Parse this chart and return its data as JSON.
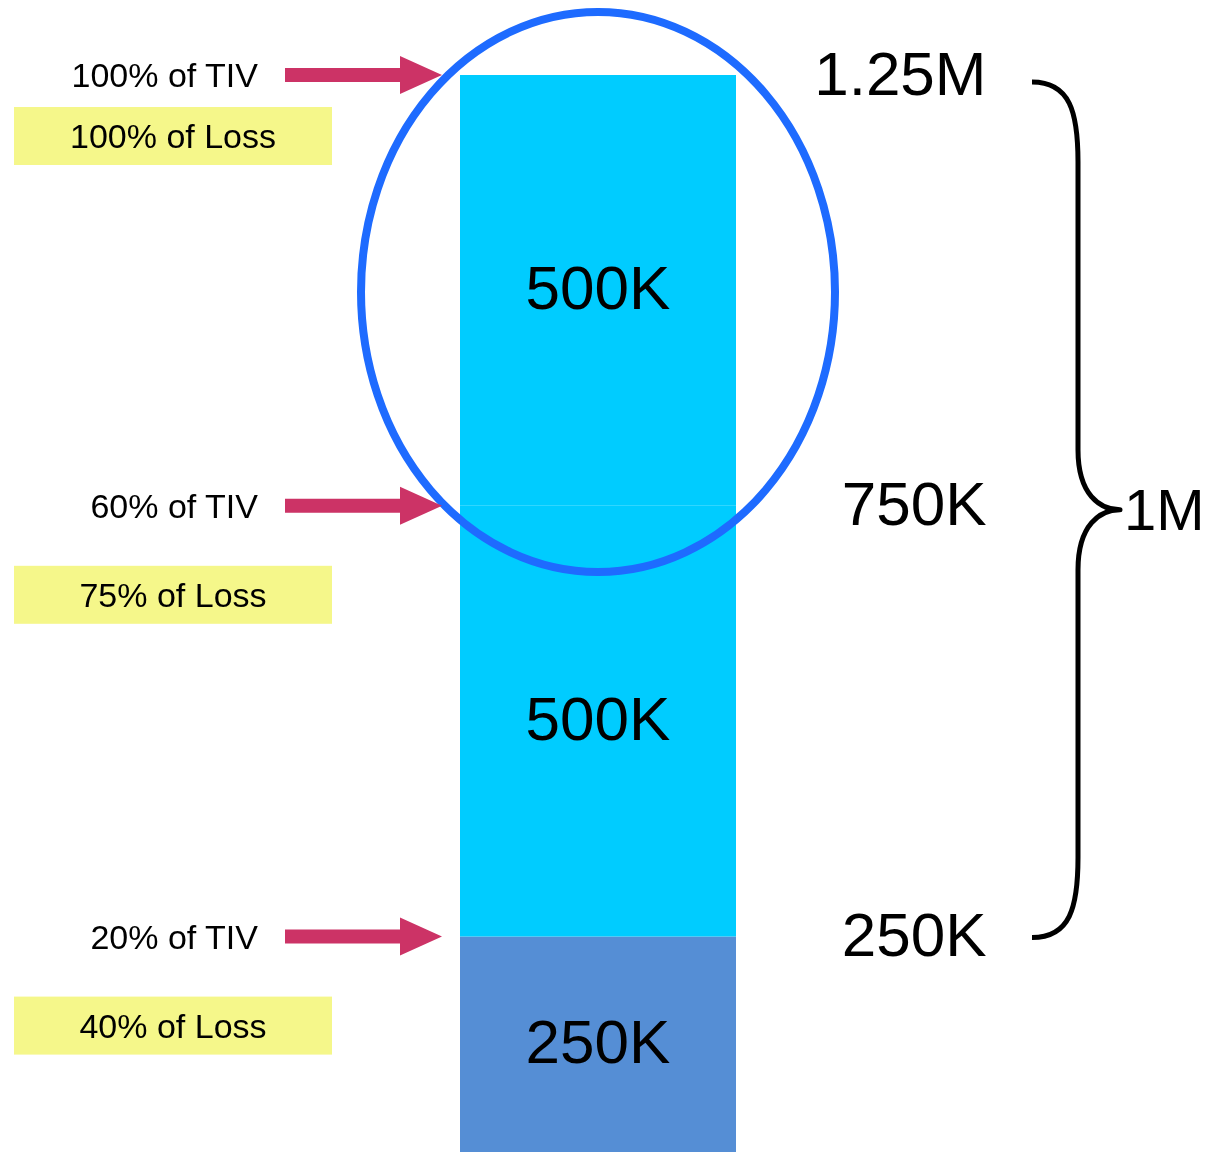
{
  "chart_data": {
    "type": "bar",
    "stacked": true,
    "categories": [
      null
    ],
    "series": [
      {
        "color": "#558ed5",
        "values": [
          250000
        ],
        "value_labels": [
          "250K"
        ]
      },
      {
        "color": "#00ccff",
        "values": [
          500000
        ],
        "value_labels": [
          "500K"
        ]
      },
      {
        "color": "#00ccff",
        "values": [
          500000
        ],
        "value_labels": [
          "500K"
        ]
      }
    ],
    "ylim": [
      0,
      1250000
    ],
    "yticks": [
      {
        "value": 250000,
        "label": "250K"
      },
      {
        "value": 750000,
        "label": "750K"
      },
      {
        "value": 1250000,
        "label": "1.25M"
      }
    ],
    "grid": false,
    "annotations": [
      "100% of TIV",
      "100% of Loss",
      "60% of TIV",
      "75% of Loss",
      "20% of TIV",
      "40% of Loss",
      "1M"
    ]
  }
}
